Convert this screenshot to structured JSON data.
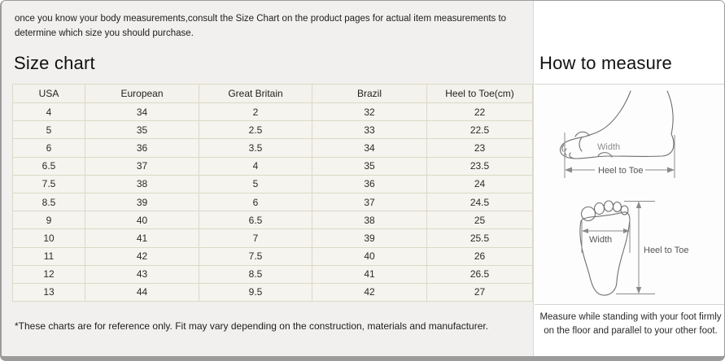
{
  "page": {
    "intro": "once you know your body measurements,consult the Size Chart on the product pages for actual item measurements to determine which size you should purchase.",
    "size_chart_title": "Size chart",
    "how_to_measure_title": "How to measure",
    "footnote": "*These charts are for reference only. Fit may vary depending on the construction, materials and manufacturer.",
    "measure_note": "Measure while standing with your foot firmly on the floor and parallel to your other foot."
  },
  "size_table": {
    "columns": [
      "USA",
      "European",
      "Great Britain",
      "Brazil",
      "Heel to Toe(cm)"
    ],
    "rows": [
      [
        "4",
        "34",
        "2",
        "32",
        "22"
      ],
      [
        "5",
        "35",
        "2.5",
        "33",
        "22.5"
      ],
      [
        "6",
        "36",
        "3.5",
        "34",
        "23"
      ],
      [
        "6.5",
        "37",
        "4",
        "35",
        "23.5"
      ],
      [
        "7.5",
        "38",
        "5",
        "36",
        "24"
      ],
      [
        "8.5",
        "39",
        "6",
        "37",
        "24.5"
      ],
      [
        "9",
        "40",
        "6.5",
        "38",
        "25"
      ],
      [
        "10",
        "41",
        "7",
        "39",
        "25.5"
      ],
      [
        "11",
        "42",
        "7.5",
        "40",
        "26"
      ],
      [
        "12",
        "43",
        "8.5",
        "41",
        "26.5"
      ],
      [
        "13",
        "44",
        "9.5",
        "42",
        "27"
      ]
    ]
  },
  "diagrams": {
    "side_view": {
      "width_label": "Width",
      "heel_to_toe_label": "Heel to Toe"
    },
    "top_view": {
      "width_label": "Width",
      "heel_to_toe_label": "Heel to Toe"
    }
  },
  "colors": {
    "left_panel_bg": "#f1f0ee",
    "right_panel_bg": "#ffffff",
    "table_cell_bg": "#f5f4ef",
    "table_border": "#dcd9c3",
    "outer_border": "#9b9b9b",
    "panel_divider": "#d5d5d3",
    "diagram_stroke": "#6f6f6f",
    "text_color": "#1d1d1d"
  }
}
